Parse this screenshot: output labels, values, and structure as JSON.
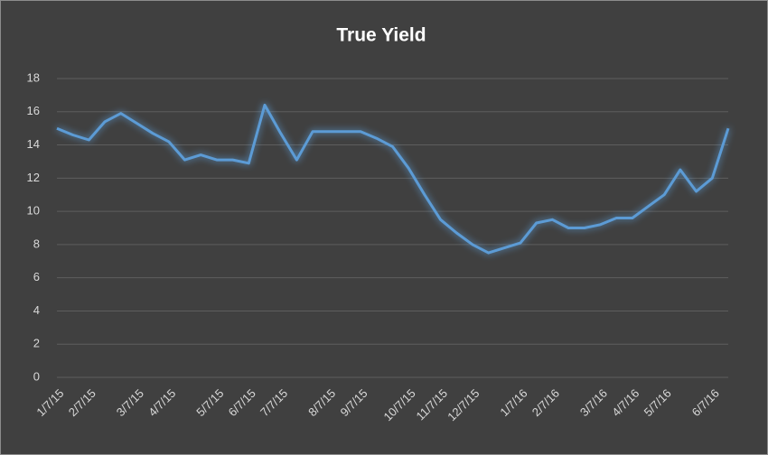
{
  "chart_data": {
    "type": "line",
    "title": "True Yield",
    "categories": [
      "1/7/15",
      null,
      "2/7/15",
      null,
      null,
      "3/7/15",
      null,
      "4/7/15",
      null,
      null,
      "5/7/15",
      null,
      "6/7/15",
      null,
      "7/7/15",
      null,
      null,
      "8/7/15",
      null,
      "9/7/15",
      null,
      null,
      "10/7/15",
      null,
      "11/7/15",
      null,
      "12/7/15",
      null,
      null,
      "1/7/16",
      null,
      "2/7/16",
      null,
      null,
      "3/7/16",
      null,
      "4/7/16",
      null,
      "5/7/16",
      null,
      null,
      "6/7/16",
      null
    ],
    "series": [
      {
        "name": "True Yield",
        "color": "#5b9bd5",
        "values": [
          15.0,
          14.6,
          14.3,
          15.4,
          15.9,
          15.3,
          14.7,
          14.2,
          13.1,
          13.4,
          13.1,
          13.1,
          12.9,
          16.4,
          14.7,
          13.1,
          14.8,
          14.8,
          14.8,
          14.8,
          14.4,
          13.9,
          12.6,
          11.0,
          9.5,
          8.7,
          8.0,
          7.5,
          7.8,
          8.1,
          9.3,
          9.5,
          9.0,
          9.0,
          9.2,
          9.6,
          9.6,
          10.3,
          11.0,
          12.5,
          11.2,
          12.0,
          15.0
        ]
      }
    ],
    "ylim": [
      0,
      18
    ],
    "yticks": [
      0,
      2,
      4,
      6,
      8,
      10,
      12,
      14,
      16,
      18
    ],
    "grid": true
  }
}
